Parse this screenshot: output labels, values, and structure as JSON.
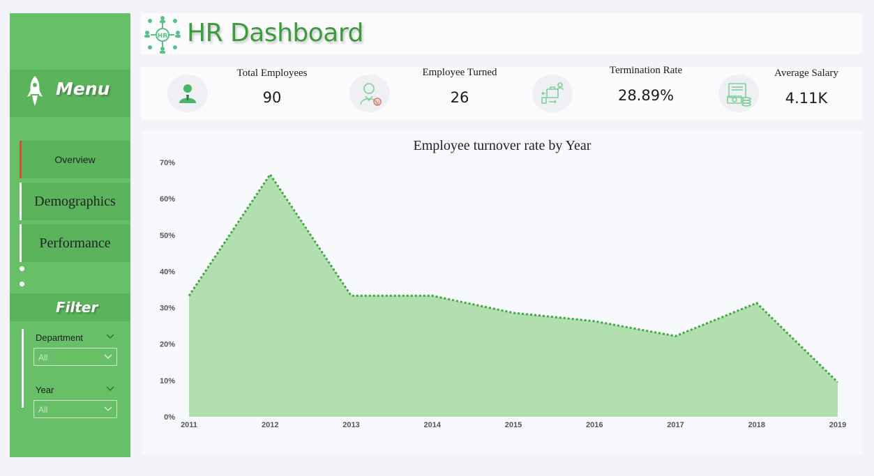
{
  "sidebar": {
    "menu_title": "Menu",
    "nav": [
      {
        "label": "Overview",
        "active": true
      },
      {
        "label": "Demographics",
        "active": false
      },
      {
        "label": "Performance",
        "active": false
      }
    ],
    "filter_title": "Filter",
    "filters": [
      {
        "label": "Department",
        "value": "All"
      },
      {
        "label": "Year",
        "value": "All"
      }
    ],
    "icons": {
      "menu": "rocket-icon",
      "more": "dots-icon",
      "dropdown": "chevron-down-icon"
    }
  },
  "header": {
    "title": "HR Dashboard",
    "logo_icon": "hr-network-icon"
  },
  "kpis": [
    {
      "label": "Total Employees",
      "value": "90",
      "icon": "employee-icon"
    },
    {
      "label": "Employee Turned",
      "value": "26",
      "icon": "turned-employee-icon"
    },
    {
      "label": "Termination Rate",
      "value": "28.89%",
      "icon": "termination-transfer-icon"
    },
    {
      "label": "Average Salary",
      "value": "4.11K",
      "icon": "salary-cash-icon"
    }
  ],
  "colors": {
    "sidebar": "#67c067",
    "sidebar_band": "#5bb35b",
    "accent_active": "#e24a2f",
    "area_fill": "#b2dfb0",
    "area_line": "#3fa83f",
    "title_green": "#3d9b3d"
  },
  "chart_data": {
    "type": "area",
    "title": "Employee turnover rate by Year",
    "x": [
      "2011",
      "2012",
      "2013",
      "2014",
      "2015",
      "2016",
      "2017",
      "2018",
      "2019"
    ],
    "series": [
      {
        "values": [
          33.3,
          66.7,
          33.3,
          33.3,
          28.6,
          26.3,
          22.2,
          31.3,
          9.5
        ]
      }
    ],
    "yticks": [
      "0%",
      "10%",
      "20%",
      "30%",
      "40%",
      "50%",
      "60%",
      "70%"
    ],
    "ylim": [
      0,
      70
    ],
    "line_style": "dotted",
    "grid": false,
    "legend": "none"
  }
}
